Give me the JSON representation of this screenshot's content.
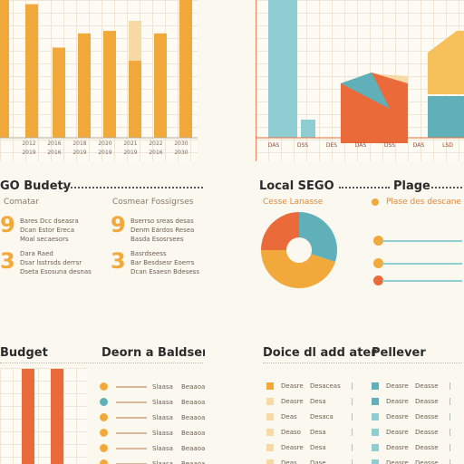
{
  "top_left": {
    "tick_labels": [
      "2012",
      "2016",
      "2018",
      "2020",
      "2021",
      "2022",
      "2030"
    ],
    "tick_labels_2": [
      "2019",
      "2016",
      "2019",
      "2019",
      "2019",
      "2016",
      "2030"
    ]
  },
  "top_right": {
    "tick_labels": [
      "DAS",
      "DSS",
      "DES",
      "DAS",
      "DSS",
      "DAS",
      "LSD"
    ]
  },
  "mid_left": {
    "title": "GO Budety",
    "col1_header": "Comatar",
    "col2_header": "Cosmear Fossigrses",
    "numbers": [
      "9",
      "3",
      "9",
      "3"
    ],
    "rows_a": [
      "Bares Dcc dseasra",
      "Dcan Estor Ereca",
      "Moal secaesors"
    ],
    "rows_b": [
      "Bserrso sreas desas",
      "Denm Eardos Resea",
      "Basda Esosrsees"
    ],
    "rows_c": [
      "Dara Raed",
      "Dsar lsstrsds derrsr",
      "Dseta Esosuna desnas"
    ],
    "rows_d": [
      "Basrdseess",
      "Bar Besdsesr Eoerrs",
      "Dcan Esaesn Bdesess"
    ]
  },
  "mid_right": {
    "title": "Local SEGO",
    "title2": "Plage",
    "sub1": "Cesse Lanasse",
    "sub2": "Plase des descane"
  },
  "bottom_left": {
    "title": "Budget",
    "title2": "Deorn a Baldserre",
    "rows": [
      {
        "a": "Slaasa",
        "b": "Beaaoa"
      },
      {
        "a": "Slaasa",
        "b": "Beaaoa"
      },
      {
        "a": "Slaasa",
        "b": "Beaaoa"
      },
      {
        "a": "Slaasa",
        "b": "Beaaoa"
      },
      {
        "a": "Slaasa",
        "b": "Beaaoa"
      },
      {
        "a": "Slaasa",
        "b": "Beaaoa"
      },
      {
        "a": "Slaasa",
        "b": "Beaaoa"
      }
    ]
  },
  "bottom_right": {
    "title": "Doice dl add ater",
    "title2": "Pellever",
    "rows": [
      {
        "a": "Deasre",
        "b": "Desaceas"
      },
      {
        "a": "Deasre",
        "b": "Desa"
      },
      {
        "a": "Deas",
        "b": "Desaca"
      },
      {
        "a": "Deaso",
        "b": "Desa"
      },
      {
        "a": "Deasre",
        "b": "Desa"
      },
      {
        "a": "Deas",
        "b": "Dase"
      },
      {
        "a": "Dea",
        "b": "Desaca"
      }
    ],
    "rows2": [
      {
        "a": "Deasre",
        "b": "Deasse"
      },
      {
        "a": "Deasre",
        "b": "Deasse"
      },
      {
        "a": "Deasre",
        "b": "Deasse"
      },
      {
        "a": "Deasre",
        "b": "Deasse"
      },
      {
        "a": "Deasre",
        "b": "Deasse"
      },
      {
        "a": "Deasre",
        "b": "Deasse"
      },
      {
        "a": "Deasre",
        "b": "Deasse"
      }
    ]
  },
  "colors": {
    "orange": "#f2a93b",
    "yellow": "#f6c15a",
    "red": "#ea6a3a",
    "teal": "#5fb0b8",
    "light_teal": "#8ecdd1",
    "peach": "#f7d9a6"
  },
  "chart_data": [
    {
      "type": "bar",
      "values": [
        165,
        160,
        108,
        125,
        128,
        140,
        125,
        165
      ],
      "series_colors": [
        "orange"
      ],
      "ylim": [
        0,
        165
      ]
    },
    {
      "type": "bar",
      "values": [
        158,
        24,
        70,
        85,
        82,
        70,
        110
      ],
      "note_colors": [
        "teal",
        "teal",
        "red",
        "teal",
        "red",
        "orange",
        "teal"
      ]
    },
    {
      "type": "pie",
      "values": [
        30,
        45,
        25
      ],
      "colors": [
        "teal",
        "orange",
        "red"
      ]
    },
    {
      "type": "bar",
      "values": [
        105,
        105
      ],
      "colors": [
        "red",
        "red"
      ]
    }
  ]
}
